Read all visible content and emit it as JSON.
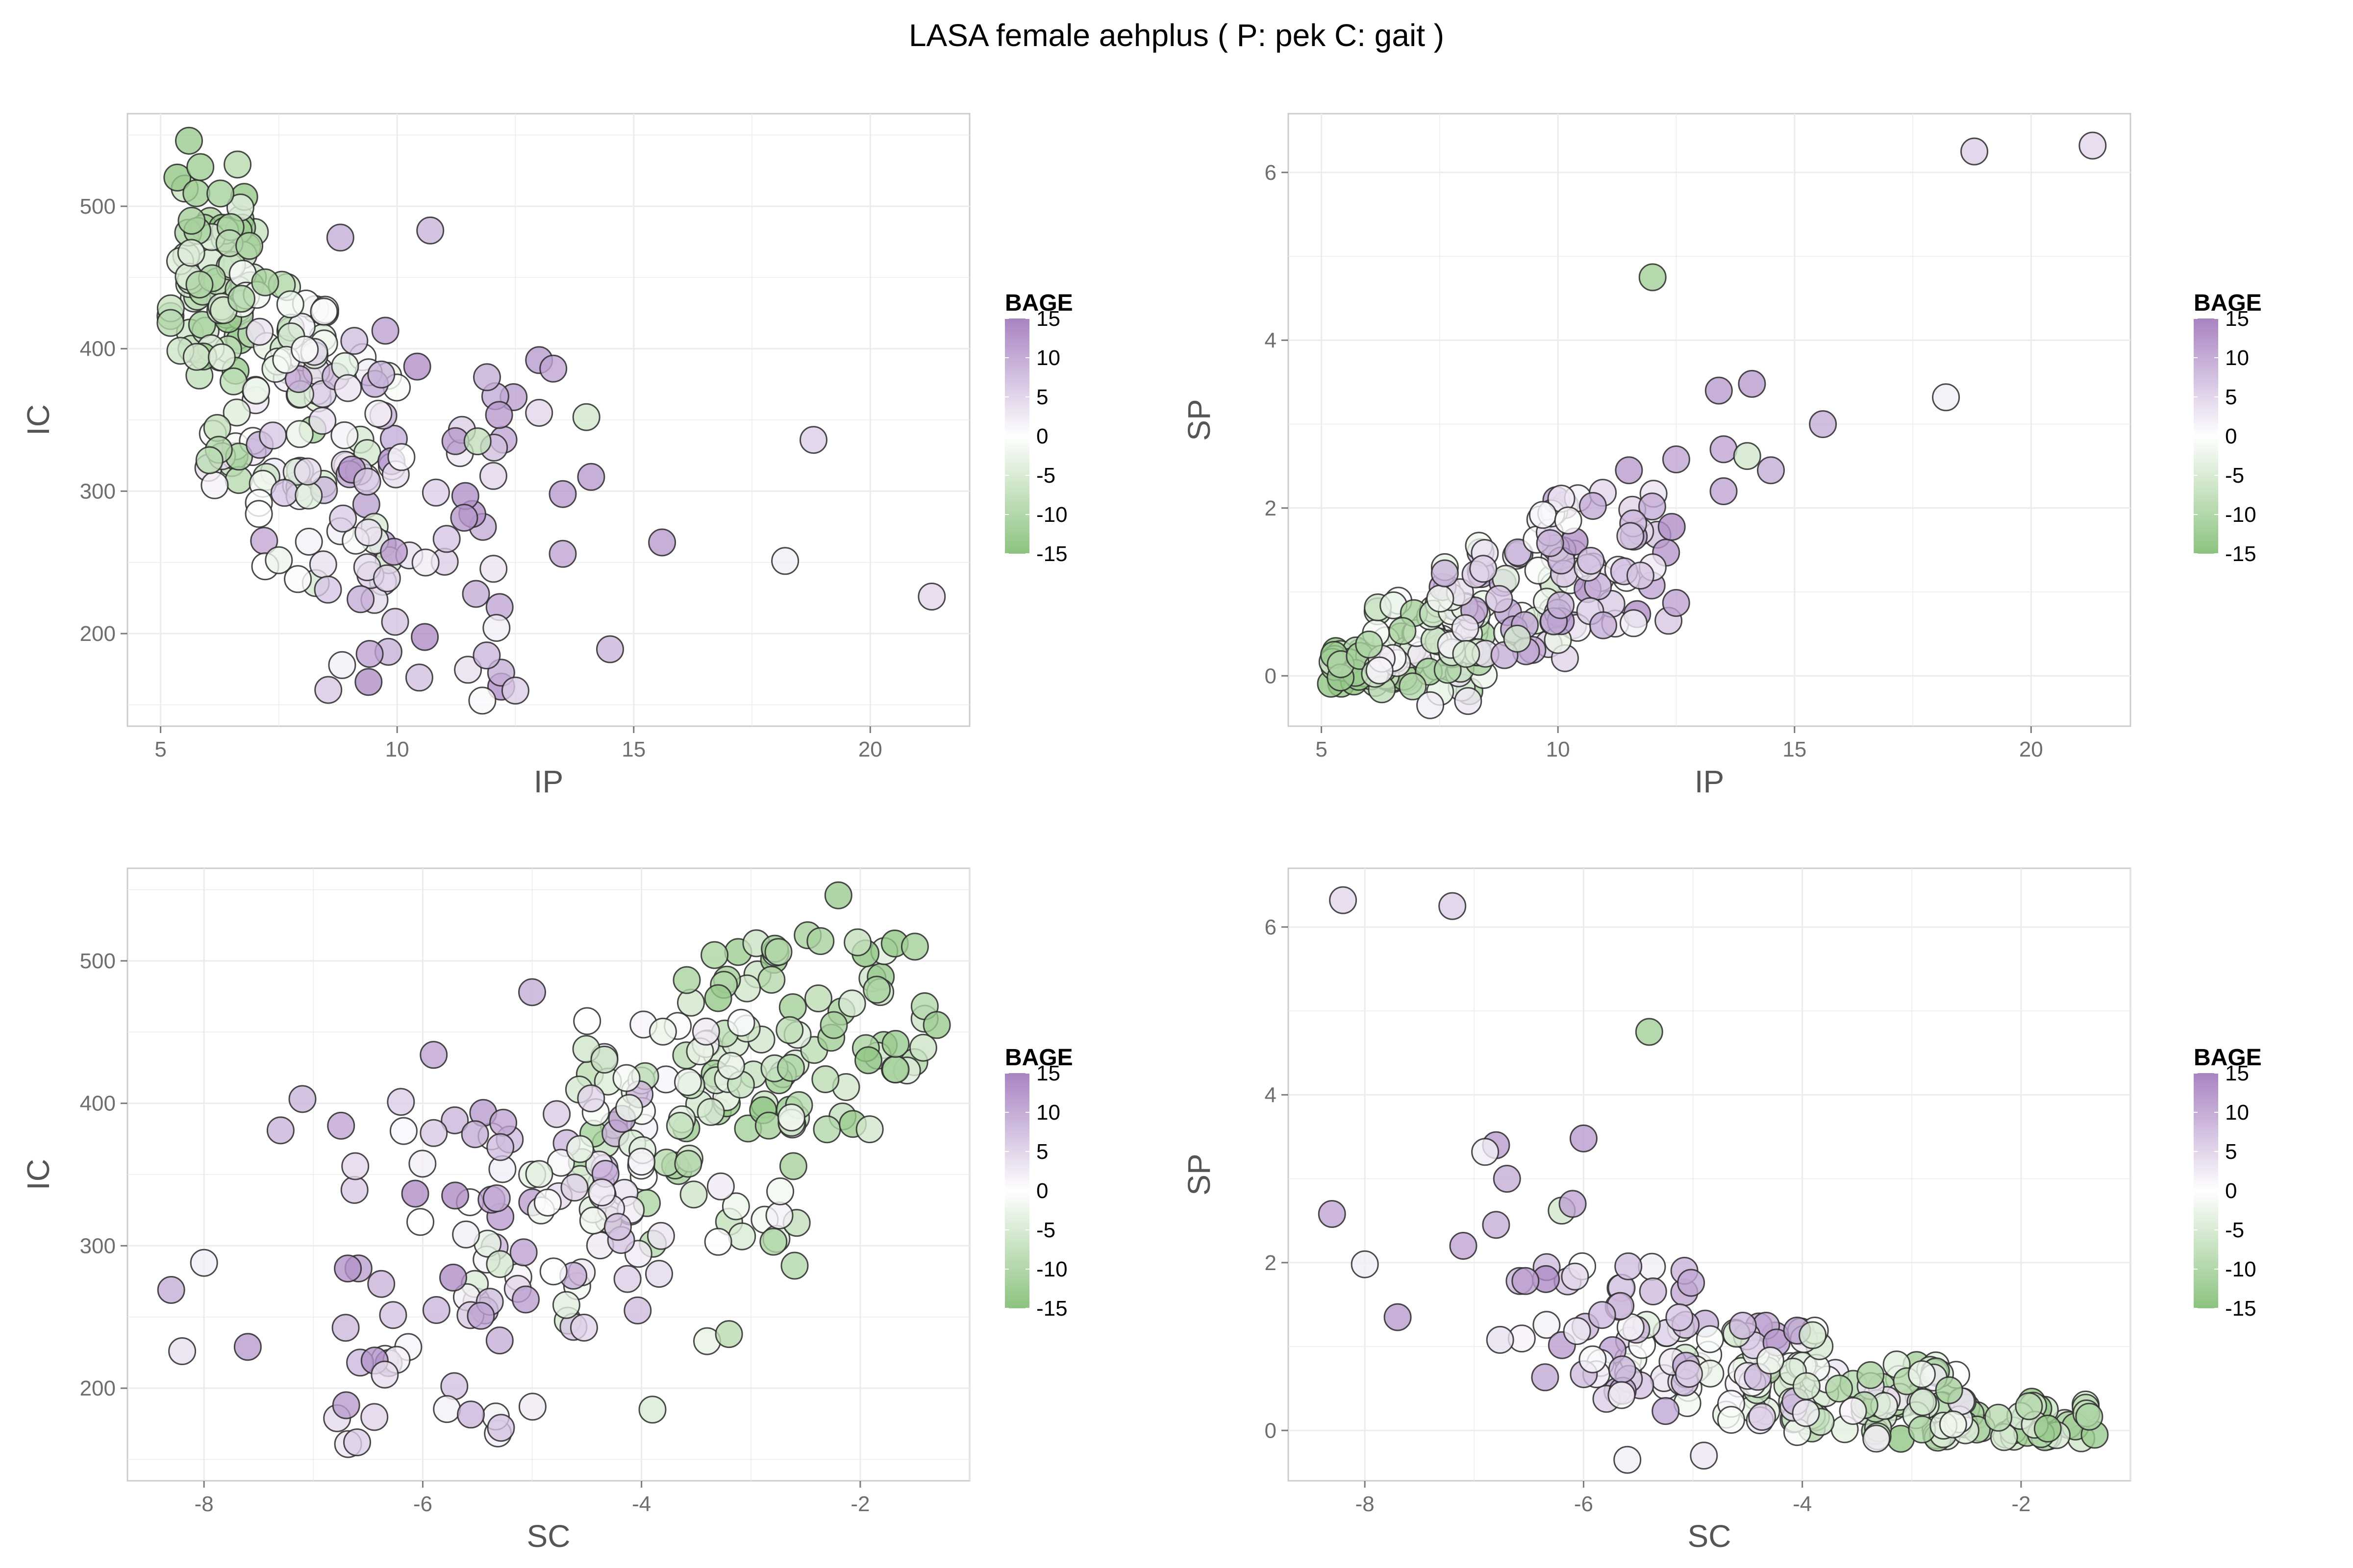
{
  "title": "LASA  female  aehplus ( P: pek  C: gait )",
  "legend": {
    "title": "BAGE",
    "ticks": [
      15,
      10,
      5,
      0,
      -5,
      -10,
      -15
    ],
    "range": [
      -15,
      15
    ],
    "colors": {
      "low": "#8cc37f",
      "mid": "#ffffff",
      "high": "#a883c2"
    }
  },
  "style": {
    "point_stroke": "#2b2b2b",
    "grid_color": "#ececec",
    "panel_border": "#cccccc",
    "point_opacity": 0.8
  },
  "chart_data": [
    {
      "type": "scatter",
      "id": "ip-ic",
      "xlabel": "IP",
      "ylabel": "IC",
      "xlim": [
        4.3,
        22.1
      ],
      "ylim": [
        135,
        565
      ],
      "xticks": [
        5,
        10,
        15,
        20
      ],
      "yticks": [
        200,
        300,
        400,
        500
      ],
      "clusters": [
        {
          "x": [
            5.2,
            7.0
          ],
          "y": [
            380,
            530
          ],
          "c": [
            -15,
            -4
          ],
          "n": 70
        },
        {
          "x": [
            6.0,
            8.5
          ],
          "y": [
            300,
            460
          ],
          "c": [
            -12,
            4
          ],
          "n": 60
        },
        {
          "x": [
            7.0,
            10.0
          ],
          "y": [
            220,
            420
          ],
          "c": [
            -6,
            12
          ],
          "n": 60
        },
        {
          "x": [
            8.5,
            12.5
          ],
          "y": [
            160,
            390
          ],
          "c": [
            0,
            14
          ],
          "n": 50
        }
      ],
      "points": [
        {
          "x": 5.6,
          "y": 546,
          "c": -13
        },
        {
          "x": 8.8,
          "y": 478,
          "c": 10
        },
        {
          "x": 10.7,
          "y": 483,
          "c": 9
        },
        {
          "x": 14.0,
          "y": 352,
          "c": -6
        },
        {
          "x": 13.5,
          "y": 298,
          "c": 12
        },
        {
          "x": 13.5,
          "y": 256,
          "c": 11
        },
        {
          "x": 14.1,
          "y": 310,
          "c": 12
        },
        {
          "x": 15.6,
          "y": 264,
          "c": 12
        },
        {
          "x": 14.5,
          "y": 189,
          "c": 9
        },
        {
          "x": 18.2,
          "y": 251,
          "c": 2
        },
        {
          "x": 18.8,
          "y": 336,
          "c": 6
        },
        {
          "x": 21.3,
          "y": 226,
          "c": 5
        },
        {
          "x": 13.0,
          "y": 392,
          "c": 12
        },
        {
          "x": 13.3,
          "y": 386,
          "c": 11
        },
        {
          "x": 13.0,
          "y": 355,
          "c": 5
        },
        {
          "x": 12.1,
          "y": 204,
          "c": 2
        },
        {
          "x": 12.5,
          "y": 160,
          "c": 6
        },
        {
          "x": 11.8,
          "y": 153,
          "c": 1
        },
        {
          "x": 11.9,
          "y": 380,
          "c": 10
        },
        {
          "x": 11.7,
          "y": 335,
          "c": -8
        }
      ]
    },
    {
      "type": "scatter",
      "id": "ip-sp",
      "xlabel": "IP",
      "ylabel": "SP",
      "xlim": [
        4.3,
        22.1
      ],
      "ylim": [
        -0.6,
        6.7
      ],
      "xticks": [
        5,
        10,
        15,
        20
      ],
      "yticks": [
        0,
        2,
        4,
        6
      ],
      "clusters": [
        {
          "x": [
            5.2,
            7.0
          ],
          "y": [
            -0.1,
            0.35
          ],
          "c": [
            -15,
            -4
          ],
          "n": 55
        },
        {
          "x": [
            6.0,
            8.5
          ],
          "y": [
            -0.2,
            0.9
          ],
          "c": [
            -12,
            4
          ],
          "n": 60
        },
        {
          "x": [
            7.5,
            10.5
          ],
          "y": [
            0.2,
            1.6
          ],
          "c": [
            -6,
            12
          ],
          "n": 60
        },
        {
          "x": [
            9.5,
            12.5
          ],
          "y": [
            0.6,
            2.2
          ],
          "c": [
            0,
            14
          ],
          "n": 50
        }
      ],
      "points": [
        {
          "x": 12.0,
          "y": 4.75,
          "c": -12
        },
        {
          "x": 18.8,
          "y": 6.25,
          "c": 6
        },
        {
          "x": 21.3,
          "y": 6.32,
          "c": 5
        },
        {
          "x": 18.2,
          "y": 3.32,
          "c": 2
        },
        {
          "x": 15.6,
          "y": 3.0,
          "c": 10
        },
        {
          "x": 14.1,
          "y": 3.48,
          "c": 12
        },
        {
          "x": 13.4,
          "y": 3.4,
          "c": 12
        },
        {
          "x": 13.5,
          "y": 2.7,
          "c": 11
        },
        {
          "x": 13.5,
          "y": 2.2,
          "c": 11
        },
        {
          "x": 14.0,
          "y": 2.62,
          "c": -6
        },
        {
          "x": 14.5,
          "y": 2.45,
          "c": 10
        },
        {
          "x": 12.5,
          "y": 2.58,
          "c": 11
        },
        {
          "x": 11.5,
          "y": 2.45,
          "c": 12
        },
        {
          "x": 7.3,
          "y": -0.35,
          "c": 2
        },
        {
          "x": 8.1,
          "y": -0.3,
          "c": 3
        }
      ]
    },
    {
      "type": "scatter",
      "id": "sc-ic",
      "xlabel": "SC",
      "ylabel": "IC",
      "xlim": [
        -8.7,
        -1.0
      ],
      "ylim": [
        135,
        565
      ],
      "xticks": [
        -8,
        -6,
        -4,
        -2
      ],
      "yticks": [
        200,
        300,
        400,
        500
      ],
      "clusters": [
        {
          "x": [
            -3.6,
            -1.4
          ],
          "y": [
            380,
            520
          ],
          "c": [
            -15,
            -4
          ],
          "n": 70
        },
        {
          "x": [
            -4.6,
            -2.5
          ],
          "y": [
            300,
            460
          ],
          "c": [
            -12,
            4
          ],
          "n": 70
        },
        {
          "x": [
            -5.6,
            -3.8
          ],
          "y": [
            240,
            420
          ],
          "c": [
            -6,
            12
          ],
          "n": 60
        },
        {
          "x": [
            -6.8,
            -4.8
          ],
          "y": [
            160,
            390
          ],
          "c": [
            0,
            14
          ],
          "n": 50
        }
      ],
      "points": [
        {
          "x": -2.2,
          "y": 546,
          "c": -13
        },
        {
          "x": -8.3,
          "y": 269,
          "c": 10
        },
        {
          "x": -8.0,
          "y": 288,
          "c": 2
        },
        {
          "x": -8.2,
          "y": 226,
          "c": 4
        },
        {
          "x": -7.6,
          "y": 229,
          "c": 12
        },
        {
          "x": -7.3,
          "y": 381,
          "c": 9
        },
        {
          "x": -7.1,
          "y": 403,
          "c": 9
        },
        {
          "x": -6.2,
          "y": 401,
          "c": 6
        },
        {
          "x": -5.9,
          "y": 434,
          "c": 11
        },
        {
          "x": -5.0,
          "y": 478,
          "c": 10
        },
        {
          "x": -3.9,
          "y": 185,
          "c": -5
        },
        {
          "x": -3.4,
          "y": 233,
          "c": -3
        },
        {
          "x": -3.2,
          "y": 238,
          "c": -9
        },
        {
          "x": -2.6,
          "y": 286,
          "c": -10
        },
        {
          "x": -1.5,
          "y": 510,
          "c": -12
        },
        {
          "x": -1.3,
          "y": 455,
          "c": -13
        },
        {
          "x": -6.7,
          "y": 188,
          "c": 12
        },
        {
          "x": -6.6,
          "y": 162,
          "c": 6
        }
      ]
    },
    {
      "type": "scatter",
      "id": "sc-sp",
      "xlabel": "SC",
      "ylabel": "SP",
      "xlim": [
        -8.7,
        -1.0
      ],
      "ylim": [
        -0.6,
        6.7
      ],
      "xticks": [
        -8,
        -6,
        -4,
        -2
      ],
      "yticks": [
        0,
        2,
        4,
        6
      ],
      "clusters": [
        {
          "x": [
            -3.5,
            -1.3
          ],
          "y": [
            -0.1,
            0.35
          ],
          "c": [
            -15,
            -4
          ],
          "n": 60
        },
        {
          "x": [
            -4.6,
            -2.5
          ],
          "y": [
            -0.1,
            0.8
          ],
          "c": [
            -12,
            4
          ],
          "n": 70
        },
        {
          "x": [
            -5.8,
            -3.8
          ],
          "y": [
            0.1,
            1.3
          ],
          "c": [
            -6,
            12
          ],
          "n": 60
        },
        {
          "x": [
            -6.8,
            -5.0
          ],
          "y": [
            0.4,
            2.0
          ],
          "c": [
            0,
            14
          ],
          "n": 40
        }
      ],
      "points": [
        {
          "x": -8.2,
          "y": 6.32,
          "c": 5
        },
        {
          "x": -7.2,
          "y": 6.25,
          "c": 6
        },
        {
          "x": -5.4,
          "y": 4.75,
          "c": -12
        },
        {
          "x": -8.3,
          "y": 2.58,
          "c": 11
        },
        {
          "x": -8.0,
          "y": 1.98,
          "c": 2
        },
        {
          "x": -7.7,
          "y": 1.35,
          "c": 12
        },
        {
          "x": -6.8,
          "y": 3.4,
          "c": 12
        },
        {
          "x": -6.9,
          "y": 3.32,
          "c": 2
        },
        {
          "x": -6.0,
          "y": 3.48,
          "c": 12
        },
        {
          "x": -6.7,
          "y": 3.0,
          "c": 10
        },
        {
          "x": -6.2,
          "y": 2.62,
          "c": -6
        },
        {
          "x": -6.1,
          "y": 2.7,
          "c": 11
        },
        {
          "x": -6.8,
          "y": 2.45,
          "c": 10
        },
        {
          "x": -7.1,
          "y": 2.2,
          "c": 11
        },
        {
          "x": -5.6,
          "y": -0.35,
          "c": 2
        },
        {
          "x": -4.9,
          "y": -0.3,
          "c": 3
        }
      ]
    }
  ]
}
